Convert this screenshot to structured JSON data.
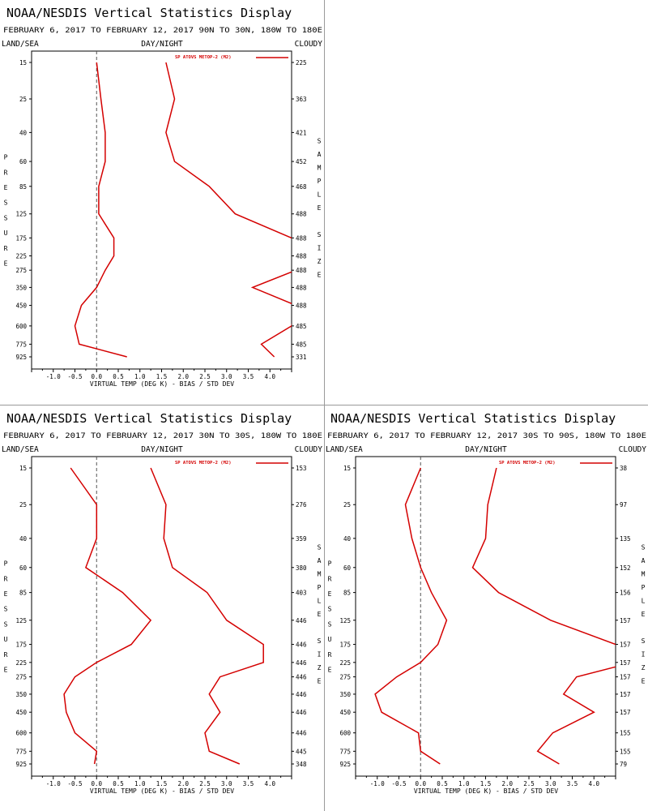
{
  "chart_data": [
    {
      "type": "line",
      "title": "NOAA/NESDIS Vertical Statistics Display",
      "subtitle": "FEBRUARY 6, 2017 TO FEBRUARY 12, 2017 90N TO 30N, 180W TO 180E",
      "label_left": "LAND/SEA",
      "label_center": "DAY/NIGHT",
      "label_right": "CLOUDY",
      "ylabel": "PRESSURE",
      "y2label": "SAMPLE SIZE",
      "xlabel": "VIRTUAL TEMP (DEG K) - BIAS / STD DEV",
      "legend": "SP ATOVS METOP-2 (M2)",
      "xlim": [
        -1.5,
        4.5
      ],
      "xticks": [
        "-1.0",
        "-0.5",
        "0.0",
        "0.5",
        "1.0",
        "1.5",
        "2.0",
        "2.5",
        "3.0",
        "3.5",
        "4.0"
      ],
      "levels": [
        "15",
        "25",
        "40",
        "60",
        "85",
        "125",
        "175",
        "225",
        "275",
        "350",
        "450",
        "600",
        "775",
        "925"
      ],
      "sample_size": [
        "225",
        "363",
        "421",
        "452",
        "468",
        "488",
        "488",
        "488",
        "488",
        "488",
        "488",
        "485",
        "485",
        "331"
      ],
      "series": [
        {
          "values": [
            0.0,
            0.1,
            0.2,
            0.2,
            0.05,
            0.05,
            0.4,
            0.4,
            0.2,
            0.0,
            -0.35,
            -0.5,
            -0.4,
            0.7
          ]
        },
        {
          "values": [
            1.6,
            1.8,
            1.6,
            1.8,
            2.6,
            3.2,
            4.5,
            4.8,
            4.6,
            3.6,
            4.6,
            4.5,
            3.8,
            4.1
          ]
        }
      ]
    },
    {
      "type": "line",
      "title": "NOAA/NESDIS Vertical Statistics Display",
      "subtitle": "FEBRUARY 6, 2017 TO FEBRUARY 12, 2017 30N TO 30S, 180W TO 180E",
      "label_left": "LAND/SEA",
      "label_center": "DAY/NIGHT",
      "label_right": "CLOUDY",
      "ylabel": "PRESSURE",
      "y2label": "SAMPLE SIZE",
      "xlabel": "VIRTUAL TEMP (DEG K) - BIAS / STD DEV",
      "legend": "SP ATOVS METOP-2 (M2)",
      "xlim": [
        -1.5,
        4.5
      ],
      "xticks": [
        "-1.0",
        "-0.5",
        "0.0",
        "0.5",
        "1.0",
        "1.5",
        "2.0",
        "2.5",
        "3.0",
        "3.5",
        "4.0"
      ],
      "levels": [
        "15",
        "25",
        "40",
        "60",
        "85",
        "125",
        "175",
        "225",
        "275",
        "350",
        "450",
        "600",
        "775",
        "925"
      ],
      "sample_size": [
        "153",
        "276",
        "359",
        "380",
        "403",
        "446",
        "446",
        "446",
        "446",
        "446",
        "446",
        "446",
        "445",
        "348"
      ],
      "series": [
        {
          "values": [
            -0.6,
            0.0,
            0.0,
            -0.25,
            0.6,
            1.25,
            0.8,
            0.0,
            -0.5,
            -0.75,
            -0.7,
            -0.5,
            0.0,
            -0.05
          ]
        },
        {
          "values": [
            1.25,
            1.6,
            1.55,
            1.75,
            2.55,
            3.0,
            3.85,
            3.85,
            2.85,
            2.6,
            2.85,
            2.5,
            2.6,
            3.3
          ]
        }
      ]
    },
    {
      "type": "line",
      "title": "NOAA/NESDIS Vertical Statistics Display",
      "subtitle": "FEBRUARY 6, 2017 TO FEBRUARY 12, 2017 30S TO 90S, 180W TO 180E",
      "label_left": "LAND/SEA",
      "label_center": "DAY/NIGHT",
      "label_right": "CLOUDY",
      "ylabel": "PRESSURE",
      "y2label": "SAMPLE SIZE",
      "xlabel": "VIRTUAL TEMP (DEG K) - BIAS / STD DEV",
      "legend": "SP ATOVS METOP-2 (M2)",
      "xlim": [
        -1.5,
        4.5
      ],
      "xticks": [
        "-1.0",
        "-0.5",
        "0.0",
        "0.5",
        "1.0",
        "1.5",
        "2.0",
        "2.5",
        "3.0",
        "3.5",
        "4.0"
      ],
      "levels": [
        "15",
        "25",
        "40",
        "60",
        "85",
        "125",
        "175",
        "225",
        "275",
        "350",
        "450",
        "600",
        "775",
        "925"
      ],
      "sample_size": [
        "38",
        "97",
        "135",
        "152",
        "156",
        "157",
        "157",
        "157",
        "157",
        "157",
        "157",
        "155",
        "155",
        "79"
      ],
      "series": [
        {
          "values": [
            0.0,
            -0.35,
            -0.2,
            0.0,
            0.25,
            0.6,
            0.4,
            0.0,
            -0.55,
            -1.05,
            -0.9,
            -0.05,
            0.0,
            0.45
          ]
        },
        {
          "values": [
            1.75,
            1.55,
            1.5,
            1.2,
            1.8,
            3.0,
            4.5,
            4.9,
            3.6,
            3.3,
            4.0,
            3.05,
            2.7,
            3.2
          ]
        }
      ]
    }
  ]
}
